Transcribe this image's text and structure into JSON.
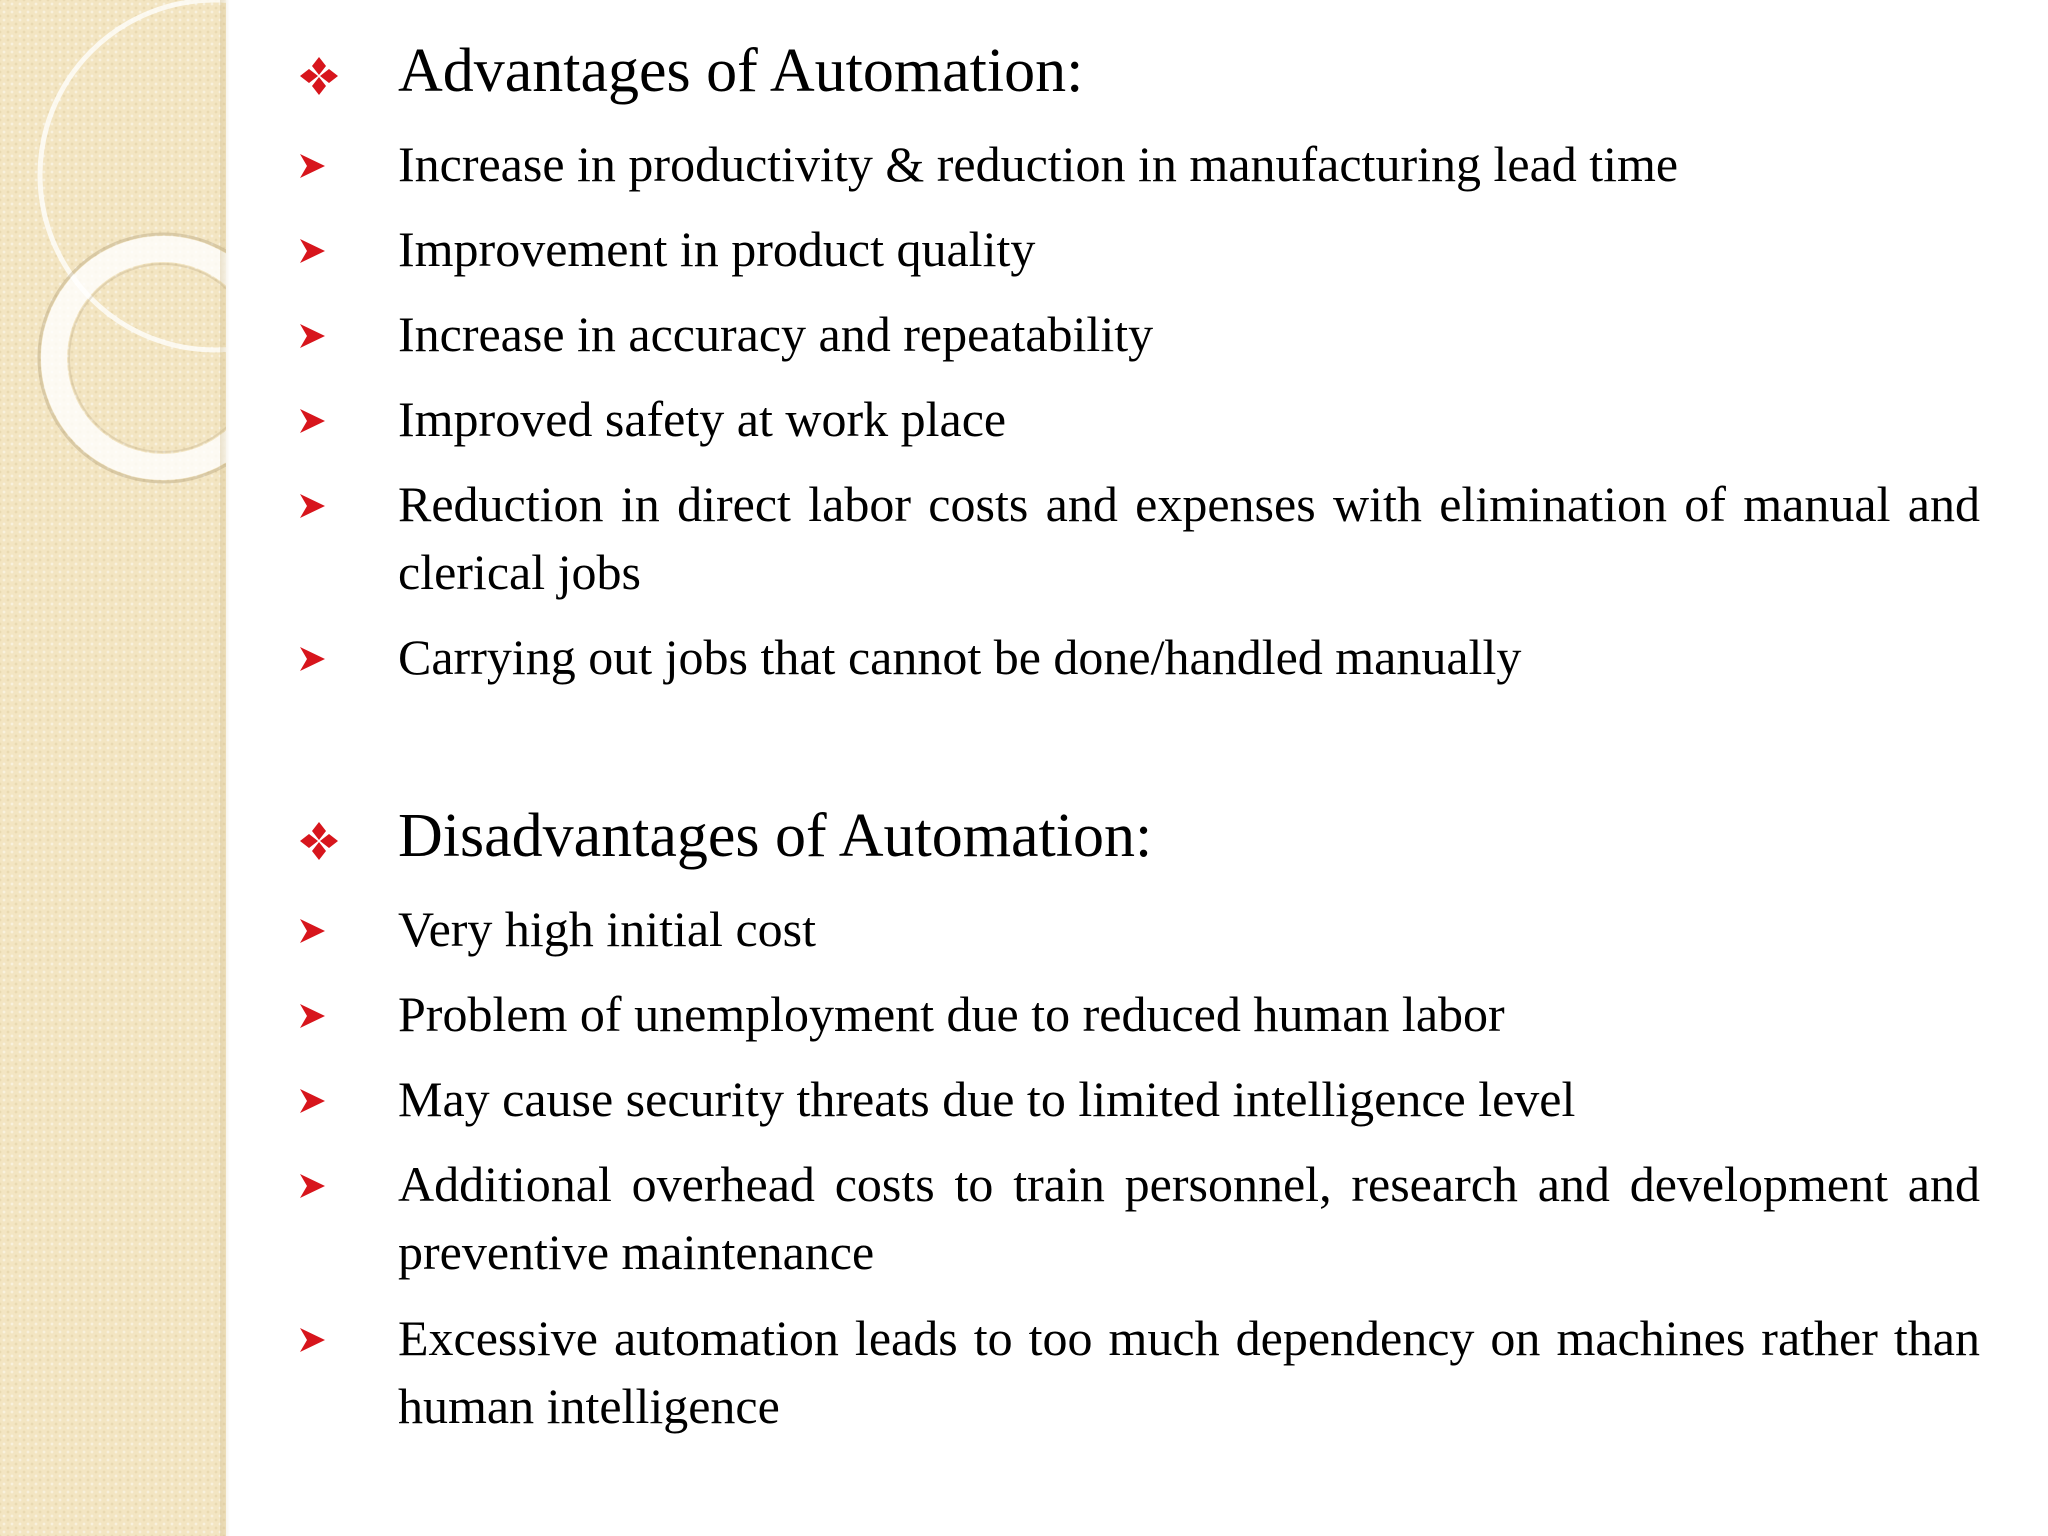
{
  "colors": {
    "panel": "#f3e5c2",
    "marker_red": "#d7151c",
    "text": "#000000"
  },
  "icons": {
    "heading_marker": "four-diamond-icon",
    "bullet_marker": "arrowhead-icon"
  },
  "advantages": {
    "heading": "Advantages of Automation:",
    "items": [
      "Increase in productivity & reduction in manufacturing lead time",
      "Improvement in product quality",
      "Increase in accuracy and repeatability",
      "Improved safety at work place",
      "Reduction in direct labor costs and expenses with elimination of manual and clerical jobs",
      "Carrying out jobs that cannot be done/handled manually"
    ]
  },
  "disadvantages": {
    "heading": "Disadvantages of Automation:",
    "items": [
      "Very high initial cost",
      "Problem of unemployment due to reduced human labor",
      "May cause security threats due to limited intelligence level",
      "Additional overhead costs to train personnel, research and development and preventive maintenance",
      "Excessive automation leads to too much dependency on machines rather than human intelligence"
    ]
  }
}
